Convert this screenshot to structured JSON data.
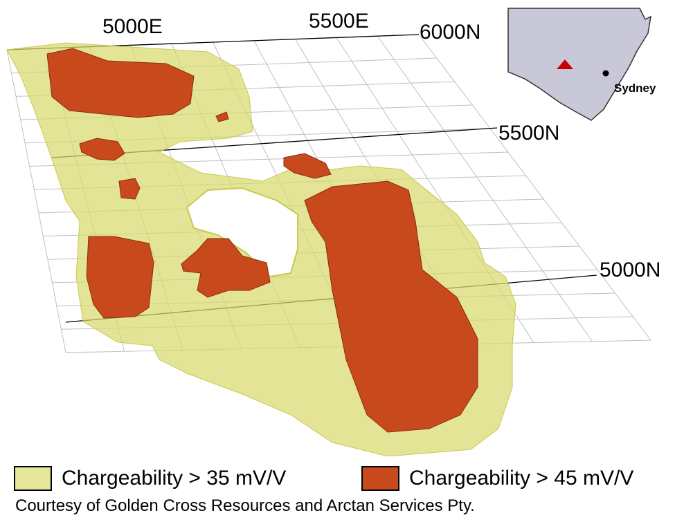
{
  "grid_labels": {
    "east_5000": "5000E",
    "east_5500": "5500E",
    "north_6000": "6000N",
    "north_5500": "5500N",
    "north_5000": "5000N"
  },
  "inset_map": {
    "city": "Sydney",
    "state_fill": "#c8c8d8",
    "marker_color": "#cc0000"
  },
  "legend": [
    {
      "label": "Chargeability > 35 mV/V",
      "color": "#e6e69a"
    },
    {
      "label": "Chargeability > 45 mV/V",
      "color": "#c84a1c"
    }
  ],
  "credit": "Courtesy of Golden Cross Resources and Arctan Services Pty."
}
